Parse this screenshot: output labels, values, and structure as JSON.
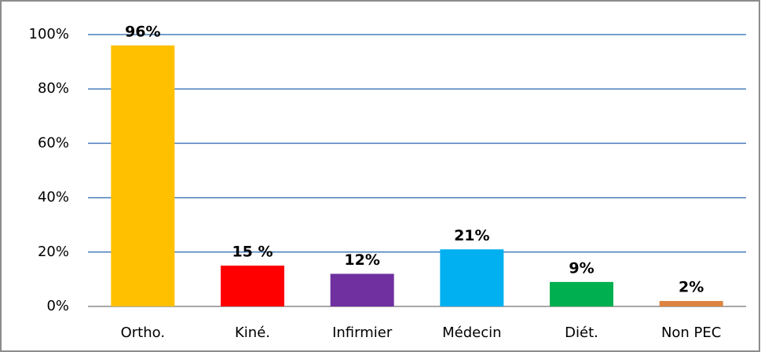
{
  "chart_data": {
    "type": "bar",
    "categories": [
      "Ortho.",
      "Kiné.",
      "Infirmier",
      "Médecin",
      "Diét.",
      "Non PEC"
    ],
    "values": [
      96,
      15,
      12,
      21,
      9,
      2
    ],
    "value_labels": [
      "96%",
      "15 %",
      "12%",
      "21%",
      "9%",
      "2%"
    ],
    "colors": [
      "#FFC000",
      "#FF0000",
      "#7030A0",
      "#00B0F0",
      "#00B050",
      "#DD8440"
    ],
    "ylim": [
      0,
      100
    ],
    "yticks": [
      {
        "value": 0,
        "label": "0%"
      },
      {
        "value": 20,
        "label": "20%"
      },
      {
        "value": 40,
        "label": "40%"
      },
      {
        "value": 60,
        "label": "60%"
      },
      {
        "value": 80,
        "label": "80%"
      },
      {
        "value": 100,
        "label": "100%"
      }
    ],
    "grid": true
  }
}
